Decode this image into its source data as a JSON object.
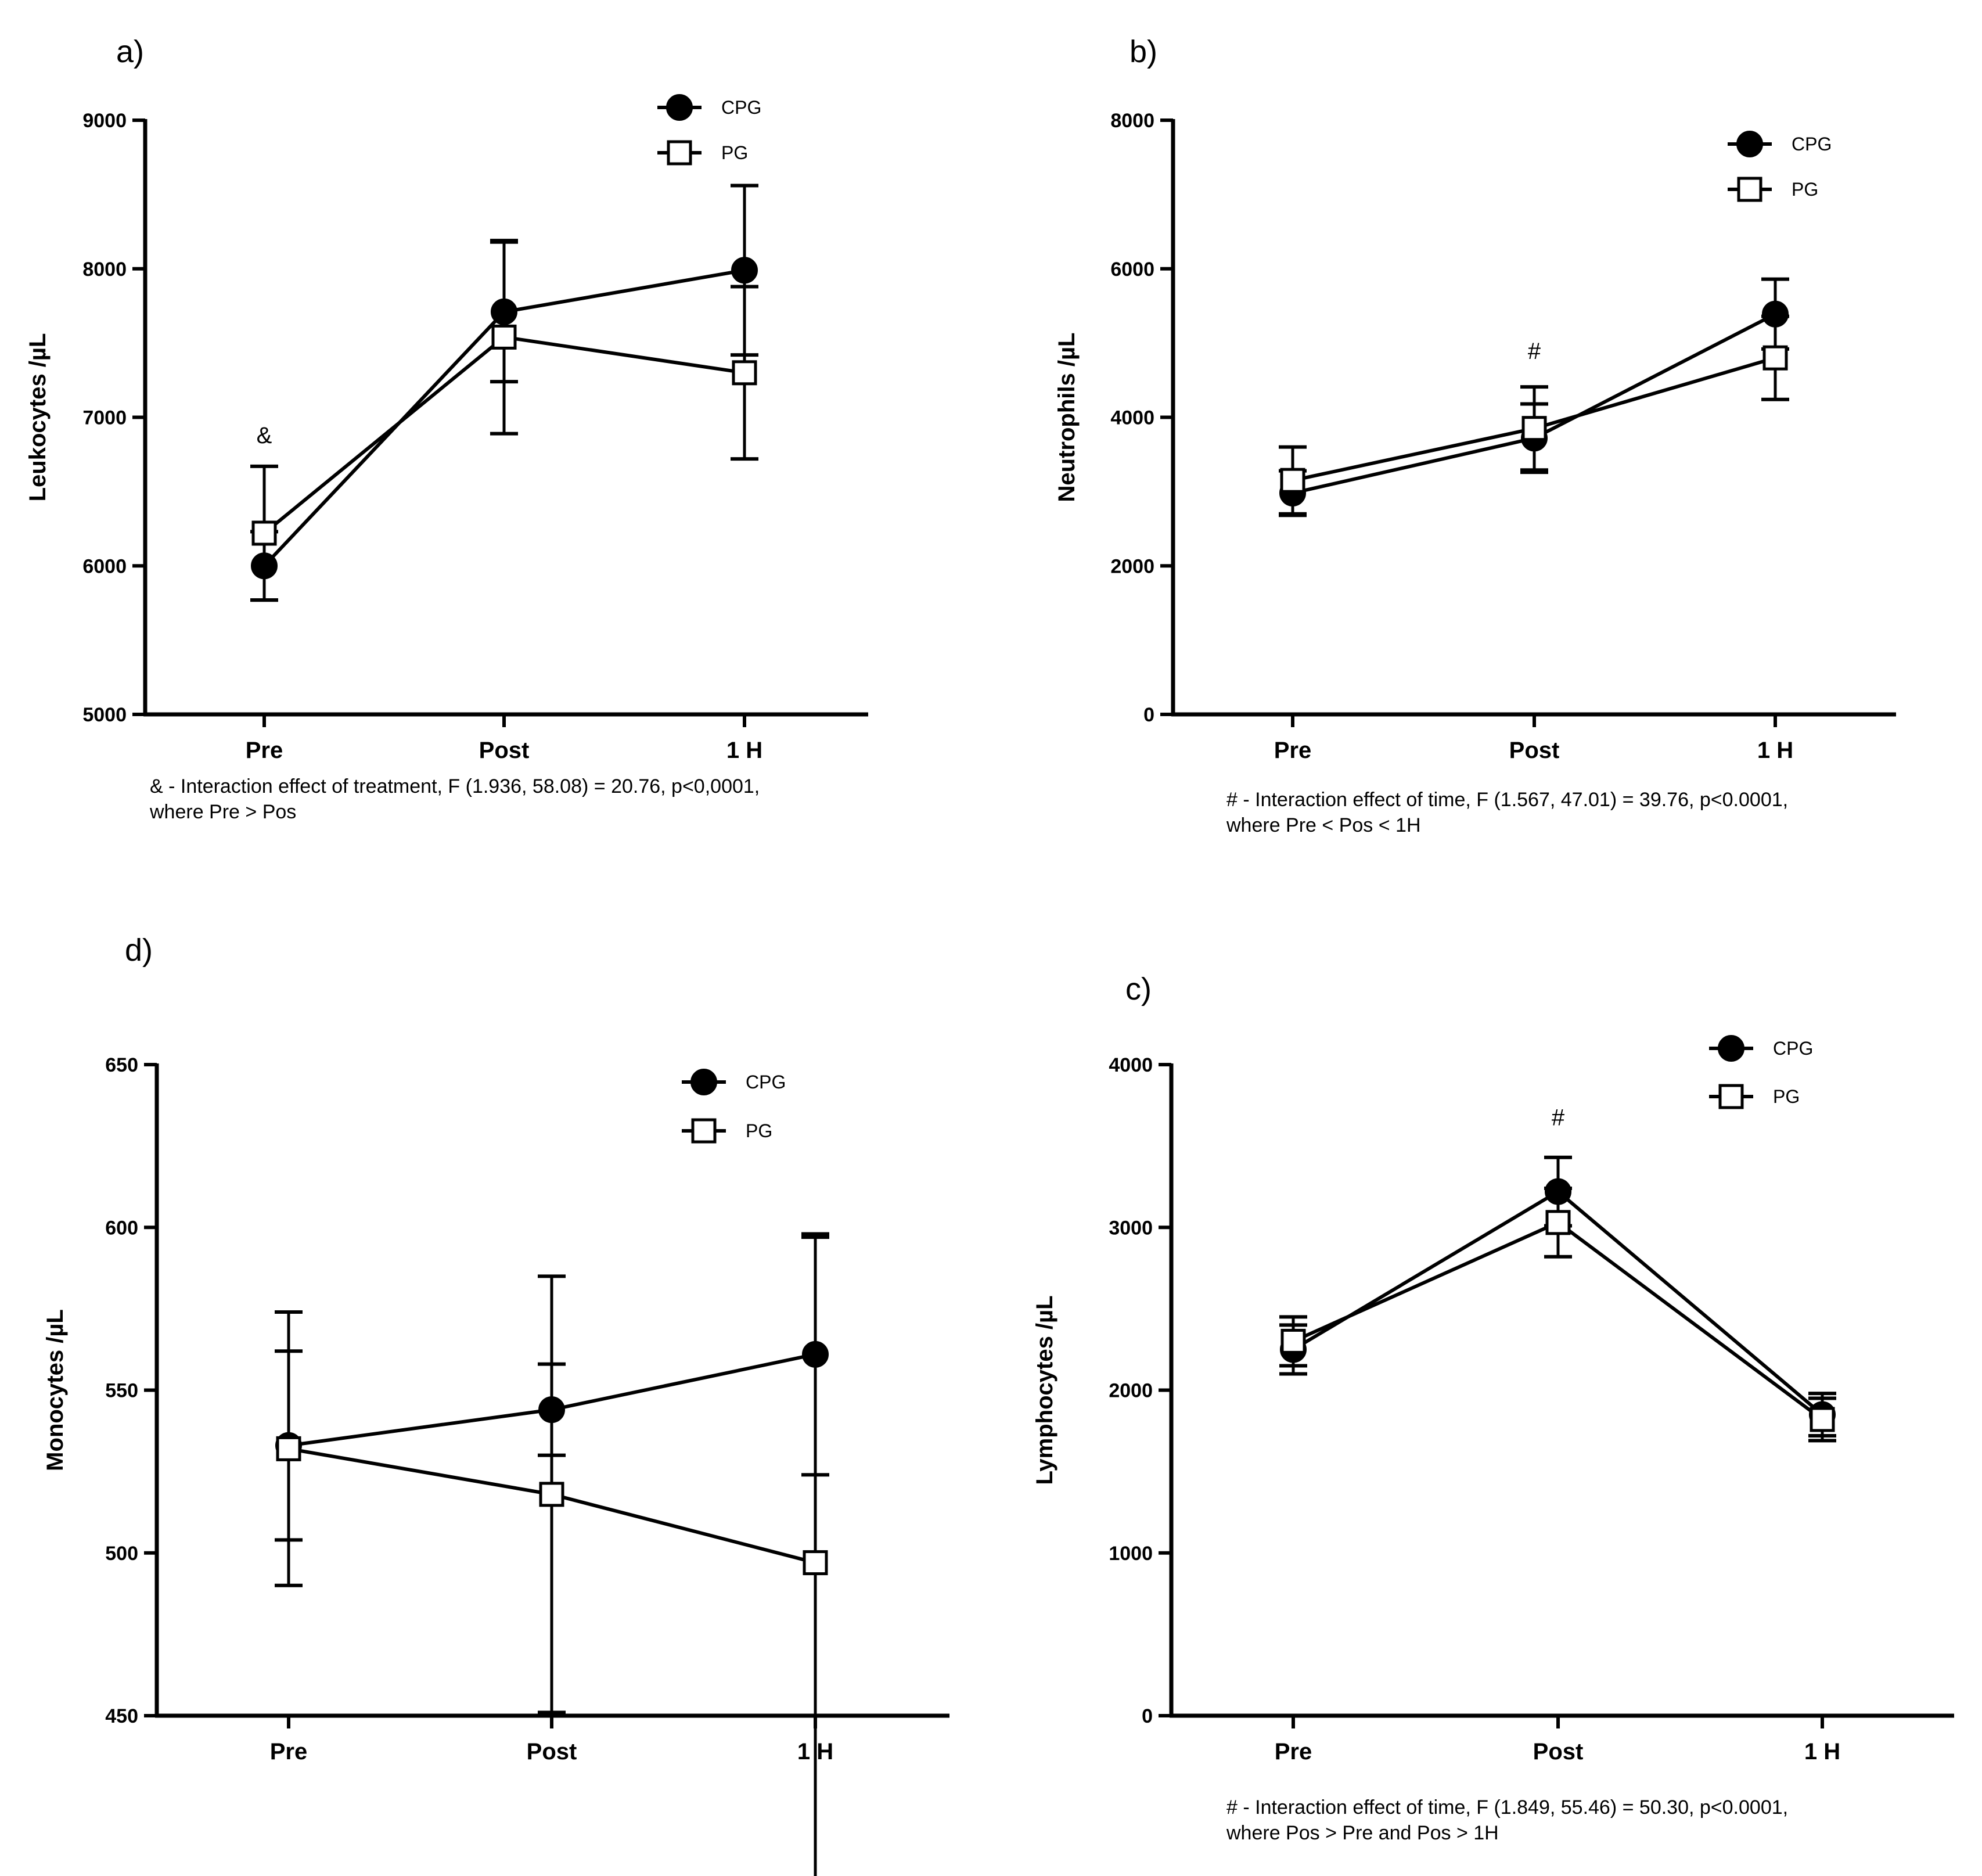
{
  "colors": {
    "ink": "#000000",
    "background": "#ffffff",
    "open_marker_fill": "#ffffff"
  },
  "legend_labels": {
    "cpg": "CPG",
    "pg": "PG"
  },
  "chart_data": [
    {
      "id": "a",
      "panel_label": "a)",
      "type": "line",
      "categories": [
        "Pre",
        "Post",
        "1 H"
      ],
      "ylabel": "Leukocytes /µL",
      "ylim": [
        5000,
        9000
      ],
      "yticks": [
        5000,
        6000,
        7000,
        8000,
        9000
      ],
      "legend_position": "top-right",
      "series": [
        {
          "name": "CPG",
          "marker": "filled-circle",
          "values": [
            6000,
            7710,
            7990
          ],
          "error": [
            230,
            470,
            570
          ]
        },
        {
          "name": "PG",
          "marker": "open-square",
          "values": [
            6220,
            7540,
            7300
          ],
          "error": [
            450,
            650,
            580
          ]
        }
      ],
      "annotations": [
        {
          "text": "&",
          "category": "Pre"
        }
      ],
      "footnote": [
        "& - Interaction effect of treatment, F (1.936, 58.08) = 20.76, p<0,0001,",
        "where Pre > Pos"
      ]
    },
    {
      "id": "b",
      "panel_label": "b)",
      "type": "line",
      "categories": [
        "Pre",
        "Post",
        "1 H"
      ],
      "ylabel": "Neutrophils /µL",
      "ylim": [
        0,
        8000
      ],
      "yticks": [
        0,
        2000,
        4000,
        6000,
        8000
      ],
      "legend_position": "top-right",
      "series": [
        {
          "name": "CPG",
          "marker": "filled-circle",
          "values": [
            2980,
            3720,
            5390
          ],
          "error": [
            300,
            460,
            470
          ]
        },
        {
          "name": "PG",
          "marker": "open-square",
          "values": [
            3150,
            3850,
            4800
          ],
          "error": [
            450,
            560,
            560
          ]
        }
      ],
      "annotations": [
        {
          "text": "#",
          "category": "Post"
        }
      ],
      "footnote": [
        " # - Interaction effect of time, F (1.567, 47.01) = 39.76, p<0.0001,",
        "where Pre < Pos < 1H"
      ]
    },
    {
      "id": "d",
      "panel_label": "d)",
      "type": "line",
      "categories": [
        "Pre",
        "Post",
        "1 H"
      ],
      "ylabel": "Monocytes /µL",
      "ylim": [
        450,
        650
      ],
      "yticks": [
        450,
        500,
        550,
        600,
        650
      ],
      "legend_position": "top-right",
      "series": [
        {
          "name": "CPG",
          "marker": "filled-circle",
          "values": [
            533,
            544,
            561
          ],
          "error": [
            29,
            14,
            37
          ]
        },
        {
          "name": "PG",
          "marker": "open-square",
          "values": [
            532,
            518,
            497
          ],
          "error": [
            42,
            67,
            100
          ]
        }
      ],
      "annotations": [],
      "footnote": []
    },
    {
      "id": "c",
      "panel_label": "c)",
      "type": "line",
      "categories": [
        "Pre",
        "Post",
        "1 H"
      ],
      "ylabel": "Lymphocytes /µL",
      "ylim": [
        0,
        4000
      ],
      "yticks": [
        0,
        1000,
        2000,
        3000,
        4000
      ],
      "legend_position": "top-right",
      "series": [
        {
          "name": "CPG",
          "marker": "filled-circle",
          "values": [
            2250,
            3220,
            1850
          ],
          "error": [
            150,
            210,
            130
          ]
        },
        {
          "name": "PG",
          "marker": "open-square",
          "values": [
            2300,
            3030,
            1820
          ],
          "error": [
            150,
            210,
            130
          ]
        }
      ],
      "annotations": [
        {
          "text": "#",
          "category": "Post"
        }
      ],
      "footnote": [
        " # - Interaction effect of time, F (1.849, 55.46) = 50.30, p<0.0001,",
        "where Pos > Pre and Pos > 1H"
      ]
    }
  ]
}
